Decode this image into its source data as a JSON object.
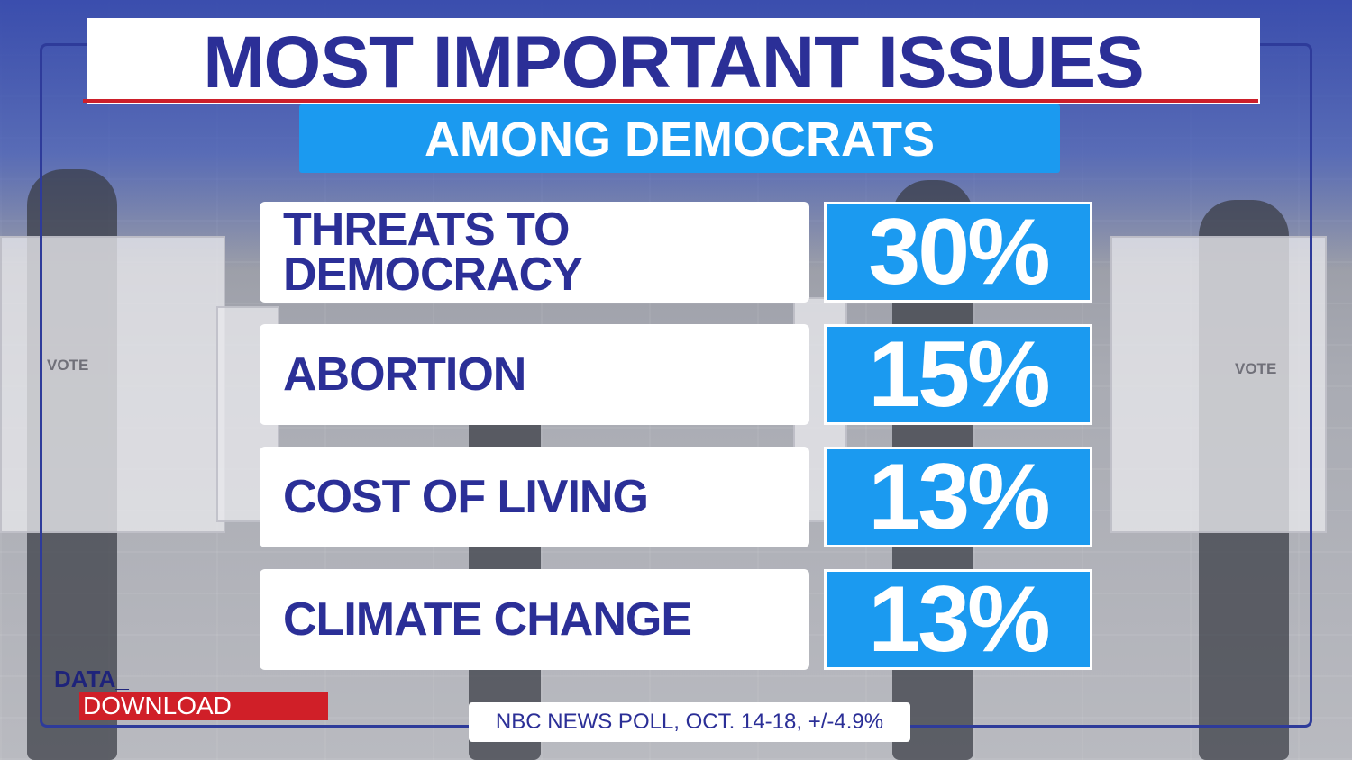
{
  "title": "MOST IMPORTANT ISSUES",
  "subtitle": "AMONG DEMOCRATS",
  "background_words": {
    "vote_left": "VOTE",
    "vote_right": "VOTE"
  },
  "logo": {
    "top": "DATA_",
    "bottom": "DOWNLOAD"
  },
  "source": "NBC NEWS POLL, OCT. 14-18, +/-4.9%",
  "colors": {
    "navy": "#2b2f97",
    "accent_blue": "#1b9af0",
    "red": "#cc1f2a",
    "white": "#ffffff"
  },
  "chart_data": {
    "type": "table",
    "title": "MOST IMPORTANT ISSUES",
    "subtitle": "AMONG DEMOCRATS",
    "categories": [
      "THREATS TO DEMOCRACY",
      "ABORTION",
      "COST OF LIVING",
      "CLIMATE CHANGE"
    ],
    "values": [
      30,
      15,
      13,
      13
    ],
    "value_labels": [
      "30%",
      "15%",
      "13%",
      "13%"
    ],
    "rows": [
      {
        "label_lines": [
          "THREATS TO",
          "DEMOCRACY"
        ],
        "value_label": "30%"
      },
      {
        "label_lines": [
          "ABORTION"
        ],
        "value_label": "15%"
      },
      {
        "label_lines": [
          "COST OF LIVING"
        ],
        "value_label": "13%"
      },
      {
        "label_lines": [
          "CLIMATE CHANGE"
        ],
        "value_label": "13%"
      }
    ],
    "source": "NBC NEWS POLL, OCT. 14-18, +/-4.9%"
  }
}
